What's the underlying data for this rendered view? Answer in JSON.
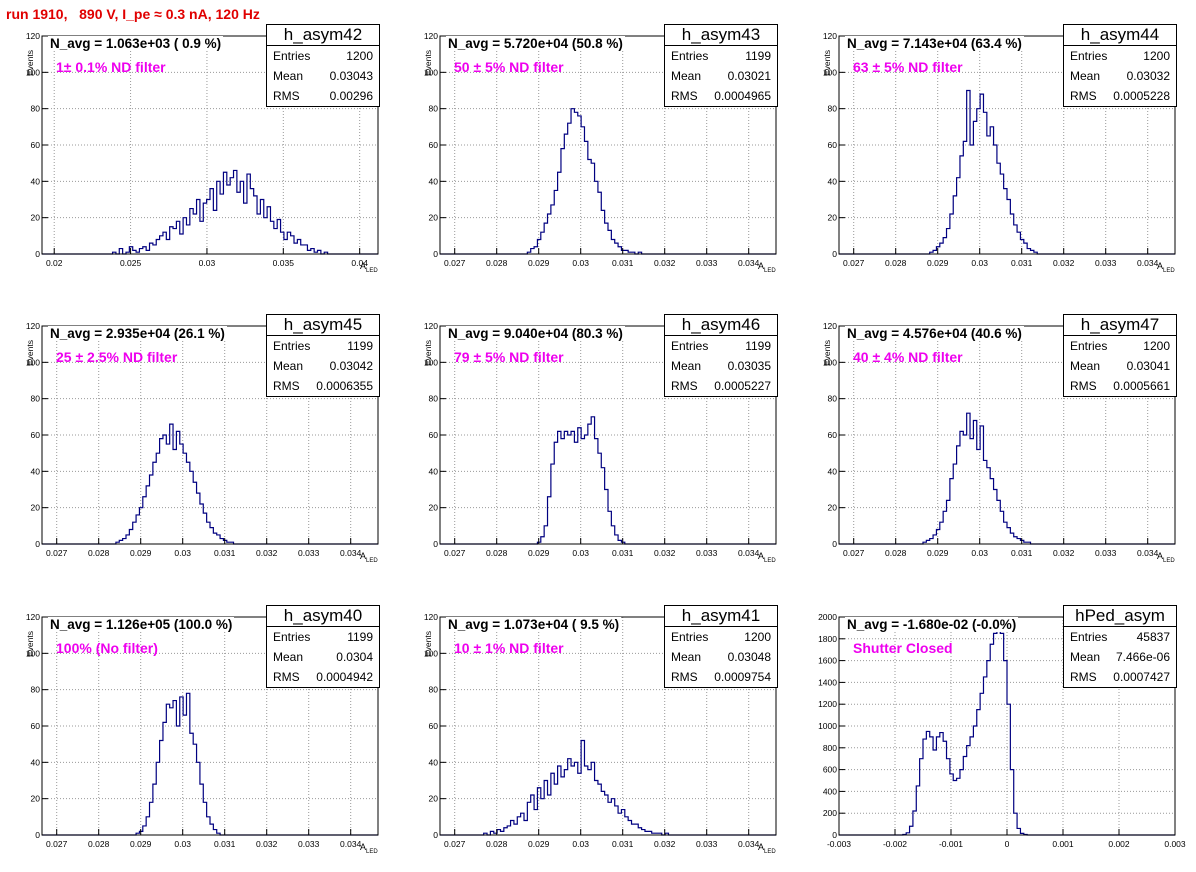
{
  "page_title": "run 1910,   890 V, I_pe ≈ 0.3 nA, 120 Hz",
  "chart_data": [
    {
      "type": "bar",
      "hist_name": "h_asym42",
      "navg_text": "N_avg = 1.063e+03 ( 0.9 %)",
      "filter_text": "1± 0.1% ND filter",
      "stats": {
        "Entries": "1200",
        "Mean": "0.03043",
        "RMS": "0.00296"
      },
      "xlabel": "A",
      "xlabel_sub": "LED",
      "ylabel": "Events",
      "xlim": [
        0.0192,
        0.0412
      ],
      "ylim": [
        0,
        120
      ],
      "x_ticks": [
        0.02,
        0.025,
        0.03,
        0.035,
        0.04
      ],
      "x_tick_labels": [
        "0.02",
        "0.025",
        "0.03",
        "0.035",
        "0.04"
      ],
      "y_ticks": [
        0,
        20,
        40,
        60,
        80,
        100,
        120
      ],
      "y_tick_labels": [
        "0",
        "20",
        "40",
        "60",
        "80",
        "100",
        "120"
      ],
      "bin_start": 0.0192,
      "bin_width": 0.00022,
      "values": [
        0,
        0,
        0,
        0,
        0,
        0,
        0,
        0,
        0,
        0,
        0,
        0,
        0,
        0,
        0,
        0,
        0,
        0,
        0,
        0,
        0,
        1,
        0,
        3,
        0,
        1,
        4,
        2,
        1,
        3,
        4,
        2,
        6,
        5,
        8,
        10,
        12,
        8,
        15,
        14,
        18,
        11,
        20,
        16,
        25,
        22,
        30,
        18,
        28,
        30,
        36,
        24,
        40,
        33,
        45,
        38,
        42,
        46,
        34,
        40,
        28,
        44,
        36,
        32,
        22,
        30,
        20,
        26,
        18,
        14,
        19,
        12,
        8,
        12,
        10,
        6,
        8,
        5,
        5,
        2,
        3,
        1,
        2,
        0,
        1,
        0,
        0,
        0,
        0,
        0,
        0,
        0,
        0,
        0,
        0,
        0,
        0,
        0,
        0,
        0
      ]
    },
    {
      "type": "bar",
      "hist_name": "h_asym43",
      "navg_text": "N_avg = 5.720e+04 (50.8 %)",
      "filter_text": "50 ± 5% ND filter",
      "stats": {
        "Entries": "1199",
        "Mean": "0.03021",
        "RMS": "0.0004965"
      },
      "xlabel": "A",
      "xlabel_sub": "LED",
      "ylabel": "Events",
      "xlim": [
        0.02665,
        0.03465
      ],
      "ylim": [
        0,
        120
      ],
      "x_ticks": [
        0.027,
        0.028,
        0.029,
        0.03,
        0.031,
        0.032,
        0.033,
        0.034
      ],
      "x_tick_labels": [
        "0.027",
        "0.028",
        "0.029",
        "0.03",
        "0.031",
        "0.032",
        "0.033",
        "0.034"
      ],
      "y_ticks": [
        0,
        20,
        40,
        60,
        80,
        100,
        120
      ],
      "y_tick_labels": [
        "0",
        "20",
        "40",
        "60",
        "80",
        "100",
        "120"
      ],
      "bin_start": 0.02665,
      "bin_width": 8e-05,
      "values": [
        0,
        0,
        0,
        0,
        0,
        0,
        0,
        0,
        0,
        0,
        0,
        0,
        0,
        0,
        0,
        0,
        0,
        0,
        0,
        0,
        0,
        0,
        0,
        0,
        0,
        0,
        1,
        3,
        4,
        8,
        12,
        17,
        22,
        27,
        35,
        45,
        58,
        66,
        72,
        80,
        78,
        76,
        70,
        62,
        52,
        50,
        40,
        34,
        24,
        17,
        13,
        8,
        6,
        4,
        2,
        2,
        1,
        1,
        0,
        1,
        0,
        0,
        0,
        0,
        0,
        0,
        0,
        0,
        0,
        0,
        0,
        0,
        0,
        0,
        0,
        0,
        0,
        0,
        0,
        0,
        0,
        0,
        0,
        0,
        0,
        0,
        0,
        0,
        0,
        0,
        0,
        0,
        0,
        0,
        0,
        0,
        0,
        0,
        0,
        0
      ]
    },
    {
      "type": "bar",
      "hist_name": "h_asym44",
      "navg_text": "N_avg = 7.143e+04 (63.4 %)",
      "filter_text": "63 ± 5% ND filter",
      "stats": {
        "Entries": "1200",
        "Mean": "0.03032",
        "RMS": "0.0005228"
      },
      "xlabel": "A",
      "xlabel_sub": "LED",
      "ylabel": "Events",
      "xlim": [
        0.02665,
        0.03465
      ],
      "ylim": [
        0,
        120
      ],
      "x_ticks": [
        0.027,
        0.028,
        0.029,
        0.03,
        0.031,
        0.032,
        0.033,
        0.034
      ],
      "x_tick_labels": [
        "0.027",
        "0.028",
        "0.029",
        "0.03",
        "0.031",
        "0.032",
        "0.033",
        "0.034"
      ],
      "y_ticks": [
        0,
        20,
        40,
        60,
        80,
        100,
        120
      ],
      "y_tick_labels": [
        "0",
        "20",
        "40",
        "60",
        "80",
        "100",
        "120"
      ],
      "bin_start": 0.02665,
      "bin_width": 8e-05,
      "values": [
        0,
        0,
        0,
        0,
        0,
        0,
        0,
        0,
        0,
        0,
        0,
        0,
        0,
        0,
        0,
        0,
        0,
        0,
        0,
        0,
        0,
        0,
        0,
        0,
        0,
        0,
        0,
        1,
        2,
        4,
        6,
        9,
        14,
        22,
        32,
        42,
        54,
        62,
        90,
        60,
        73,
        80,
        88,
        78,
        65,
        70,
        60,
        50,
        44,
        36,
        30,
        22,
        16,
        12,
        8,
        6,
        3,
        2,
        1,
        0,
        0,
        0,
        0,
        0,
        0,
        0,
        0,
        0,
        0,
        0,
        0,
        0,
        0,
        0,
        0,
        0,
        0,
        0,
        0,
        0,
        0,
        0,
        0,
        0,
        0,
        0,
        0,
        0,
        0,
        0,
        0,
        0,
        0,
        0,
        0,
        0,
        0,
        0,
        0,
        0
      ]
    },
    {
      "type": "bar",
      "hist_name": "h_asym45",
      "navg_text": "N_avg = 2.935e+04 (26.1 %)",
      "filter_text": "25 ± 2.5% ND filter",
      "stats": {
        "Entries": "1199",
        "Mean": "0.03042",
        "RMS": "0.0006355"
      },
      "xlabel": "A",
      "xlabel_sub": "LED",
      "ylabel": "Events",
      "xlim": [
        0.02665,
        0.03465
      ],
      "ylim": [
        0,
        120
      ],
      "x_ticks": [
        0.027,
        0.028,
        0.029,
        0.03,
        0.031,
        0.032,
        0.033,
        0.034
      ],
      "x_tick_labels": [
        "0.027",
        "0.028",
        "0.029",
        "0.03",
        "0.031",
        "0.032",
        "0.033",
        "0.034"
      ],
      "y_ticks": [
        0,
        20,
        40,
        60,
        80,
        100,
        120
      ],
      "y_tick_labels": [
        "0",
        "20",
        "40",
        "60",
        "80",
        "100",
        "120"
      ],
      "bin_start": 0.02665,
      "bin_width": 8e-05,
      "values": [
        0,
        0,
        0,
        0,
        0,
        0,
        0,
        0,
        0,
        0,
        0,
        0,
        0,
        0,
        0,
        0,
        0,
        0,
        0,
        0,
        0,
        0,
        1,
        2,
        3,
        5,
        8,
        12,
        16,
        20,
        26,
        32,
        38,
        45,
        50,
        58,
        60,
        55,
        66,
        52,
        62,
        55,
        50,
        45,
        40,
        34,
        28,
        22,
        17,
        12,
        9,
        6,
        5,
        3,
        2,
        1,
        1,
        0,
        0,
        0,
        0,
        0,
        0,
        0,
        0,
        0,
        0,
        0,
        0,
        0,
        0,
        0,
        0,
        0,
        0,
        0,
        0,
        0,
        0,
        0,
        0,
        0,
        0,
        0,
        0,
        0,
        0,
        0,
        0,
        0,
        0,
        0,
        0,
        0,
        0,
        0,
        0,
        0,
        0,
        0
      ]
    },
    {
      "type": "bar",
      "hist_name": "h_asym46",
      "navg_text": "N_avg = 9.040e+04 (80.3 %)",
      "filter_text": "79 ± 5% ND filter",
      "stats": {
        "Entries": "1199",
        "Mean": "0.03035",
        "RMS": "0.0005227"
      },
      "xlabel": "A",
      "xlabel_sub": "LED",
      "ylabel": "Events",
      "xlim": [
        0.02665,
        0.03465
      ],
      "ylim": [
        0,
        120
      ],
      "x_ticks": [
        0.027,
        0.028,
        0.029,
        0.03,
        0.031,
        0.032,
        0.033,
        0.034
      ],
      "x_tick_labels": [
        "0.027",
        "0.028",
        "0.029",
        "0.03",
        "0.031",
        "0.032",
        "0.033",
        "0.034"
      ],
      "y_ticks": [
        0,
        20,
        40,
        60,
        80,
        100,
        120
      ],
      "y_tick_labels": [
        "0",
        "20",
        "40",
        "60",
        "80",
        "100",
        "120"
      ],
      "bin_start": 0.02665,
      "bin_width": 8e-05,
      "values": [
        0,
        0,
        0,
        0,
        0,
        0,
        0,
        0,
        0,
        0,
        0,
        0,
        0,
        0,
        0,
        0,
        0,
        0,
        0,
        0,
        0,
        0,
        0,
        0,
        0,
        0,
        0,
        0,
        0,
        1,
        4,
        10,
        26,
        44,
        56,
        62,
        58,
        62,
        60,
        62,
        56,
        64,
        58,
        60,
        66,
        70,
        58,
        50,
        42,
        30,
        18,
        10,
        5,
        2,
        1,
        0,
        0,
        0,
        0,
        0,
        0,
        0,
        0,
        0,
        0,
        0,
        0,
        0,
        0,
        0,
        0,
        0,
        0,
        0,
        0,
        0,
        0,
        0,
        0,
        0,
        0,
        0,
        0,
        0,
        0,
        0,
        0,
        0,
        0,
        0,
        0,
        0,
        0,
        0,
        0,
        0,
        0,
        0,
        0,
        0
      ]
    },
    {
      "type": "bar",
      "hist_name": "h_asym47",
      "navg_text": "N_avg = 4.576e+04 (40.6 %)",
      "filter_text": "40 ± 4% ND filter",
      "stats": {
        "Entries": "1200",
        "Mean": "0.03041",
        "RMS": "0.0005661"
      },
      "xlabel": "A",
      "xlabel_sub": "LED",
      "ylabel": "Events",
      "xlim": [
        0.02665,
        0.03465
      ],
      "ylim": [
        0,
        120
      ],
      "x_ticks": [
        0.027,
        0.028,
        0.029,
        0.03,
        0.031,
        0.032,
        0.033,
        0.034
      ],
      "x_tick_labels": [
        "0.027",
        "0.028",
        "0.029",
        "0.03",
        "0.031",
        "0.032",
        "0.033",
        "0.034"
      ],
      "y_ticks": [
        0,
        20,
        40,
        60,
        80,
        100,
        120
      ],
      "y_tick_labels": [
        "0",
        "20",
        "40",
        "60",
        "80",
        "100",
        "120"
      ],
      "bin_start": 0.02665,
      "bin_width": 8e-05,
      "values": [
        0,
        0,
        0,
        0,
        0,
        0,
        0,
        0,
        0,
        0,
        0,
        0,
        0,
        0,
        0,
        0,
        0,
        0,
        0,
        0,
        0,
        0,
        0,
        0,
        0,
        1,
        2,
        3,
        5,
        8,
        12,
        18,
        24,
        36,
        44,
        54,
        62,
        60,
        72,
        58,
        68,
        52,
        65,
        46,
        42,
        36,
        30,
        24,
        18,
        12,
        9,
        6,
        4,
        3,
        2,
        1,
        1,
        0,
        0,
        0,
        0,
        0,
        0,
        0,
        0,
        0,
        0,
        0,
        0,
        0,
        0,
        0,
        0,
        0,
        0,
        0,
        0,
        0,
        0,
        0,
        0,
        0,
        0,
        0,
        0,
        0,
        0,
        0,
        0,
        0,
        0,
        0,
        0,
        0,
        0,
        0,
        0,
        0,
        0,
        0
      ]
    },
    {
      "type": "bar",
      "hist_name": "h_asym40",
      "navg_text": "N_avg = 1.126e+05 (100.0 %)",
      "filter_text": "100% (No filter)",
      "stats": {
        "Entries": "1199",
        "Mean": "0.0304",
        "RMS": "0.0004942"
      },
      "xlabel": "A",
      "xlabel_sub": "LED",
      "ylabel": "Events",
      "xlim": [
        0.02665,
        0.03465
      ],
      "ylim": [
        0,
        120
      ],
      "x_ticks": [
        0.027,
        0.028,
        0.029,
        0.03,
        0.031,
        0.032,
        0.033,
        0.034
      ],
      "x_tick_labels": [
        "0.027",
        "0.028",
        "0.029",
        "0.03",
        "0.031",
        "0.032",
        "0.033",
        "0.034"
      ],
      "y_ticks": [
        0,
        20,
        40,
        60,
        80,
        100,
        120
      ],
      "y_tick_labels": [
        "0",
        "20",
        "40",
        "60",
        "80",
        "100",
        "120"
      ],
      "bin_start": 0.02665,
      "bin_width": 8e-05,
      "values": [
        0,
        0,
        0,
        0,
        0,
        0,
        0,
        0,
        0,
        0,
        0,
        0,
        0,
        0,
        0,
        0,
        0,
        0,
        0,
        0,
        0,
        0,
        0,
        0,
        0,
        0,
        0,
        0,
        1,
        2,
        5,
        10,
        18,
        28,
        40,
        52,
        62,
        72,
        70,
        74,
        60,
        76,
        66,
        78,
        56,
        50,
        40,
        28,
        18,
        10,
        6,
        3,
        1,
        0,
        0,
        0,
        0,
        0,
        0,
        0,
        0,
        0,
        0,
        0,
        0,
        0,
        0,
        0,
        0,
        0,
        0,
        0,
        0,
        0,
        0,
        0,
        0,
        0,
        0,
        0,
        0,
        0,
        0,
        0,
        0,
        0,
        0,
        0,
        0,
        0,
        0,
        0,
        0,
        0,
        0,
        0,
        0,
        0,
        0,
        0
      ]
    },
    {
      "type": "bar",
      "hist_name": "h_asym41",
      "navg_text": "N_avg = 1.073e+04 ( 9.5 %)",
      "filter_text": "10 ± 1% ND filter",
      "stats": {
        "Entries": "1200",
        "Mean": "0.03048",
        "RMS": "0.0009754"
      },
      "xlabel": "A",
      "xlabel_sub": "LED",
      "ylabel": "Events",
      "xlim": [
        0.02665,
        0.03465
      ],
      "ylim": [
        0,
        120
      ],
      "x_ticks": [
        0.027,
        0.028,
        0.029,
        0.03,
        0.031,
        0.032,
        0.033,
        0.034
      ],
      "x_tick_labels": [
        "0.027",
        "0.028",
        "0.029",
        "0.03",
        "0.031",
        "0.032",
        "0.033",
        "0.034"
      ],
      "y_ticks": [
        0,
        20,
        40,
        60,
        80,
        100,
        120
      ],
      "y_tick_labels": [
        "0",
        "20",
        "40",
        "60",
        "80",
        "100",
        "120"
      ],
      "bin_start": 0.02665,
      "bin_width": 8e-05,
      "values": [
        0,
        0,
        0,
        0,
        0,
        0,
        0,
        0,
        0,
        0,
        0,
        0,
        0,
        1,
        0,
        2,
        1,
        3,
        2,
        4,
        5,
        8,
        6,
        10,
        12,
        8,
        18,
        22,
        14,
        26,
        20,
        30,
        22,
        34,
        28,
        38,
        32,
        36,
        42,
        38,
        40,
        34,
        52,
        38,
        36,
        40,
        30,
        28,
        24,
        22,
        18,
        20,
        16,
        12,
        14,
        10,
        8,
        6,
        6,
        4,
        3,
        2,
        2,
        1,
        1,
        1,
        0,
        1,
        0,
        0,
        0,
        0,
        0,
        0,
        0,
        0,
        0,
        0,
        0,
        0,
        0,
        0,
        0,
        0,
        0,
        0,
        0,
        0,
        0,
        0,
        0,
        0,
        0,
        0,
        0,
        0,
        0,
        0,
        0,
        0
      ]
    },
    {
      "type": "bar",
      "hist_name": "hPed_asym",
      "navg_text": "N_avg = -1.680e-02 (-0.0%)",
      "filter_text": "Shutter Closed",
      "stats": {
        "Entries": "45837",
        "Mean": "7.466e-06",
        "RMS": "0.0007427"
      },
      "xlabel": "",
      "xlabel_sub": "",
      "ylabel": "",
      "xlim": [
        -0.003,
        0.003
      ],
      "ylim": [
        0,
        2000
      ],
      "x_ticks": [
        -0.003,
        -0.002,
        -0.001,
        0,
        0.001,
        0.002,
        0.003
      ],
      "x_tick_labels": [
        "-0.003",
        "-0.002",
        "-0.001",
        "0",
        "0.001",
        "0.002",
        "0.003"
      ],
      "y_ticks": [
        0,
        200,
        400,
        600,
        800,
        1000,
        1200,
        1400,
        1600,
        1800,
        2000
      ],
      "y_tick_labels": [
        "0",
        "200",
        "400",
        "600",
        "800",
        "1000",
        "1200",
        "1400",
        "1600",
        "1800",
        "2000"
      ],
      "bin_start": -0.003,
      "bin_width": 6e-05,
      "values": [
        0,
        0,
        0,
        0,
        0,
        0,
        0,
        0,
        0,
        0,
        0,
        0,
        0,
        0,
        0,
        0,
        0,
        0,
        0,
        5,
        20,
        80,
        220,
        450,
        700,
        880,
        950,
        900,
        780,
        900,
        940,
        860,
        700,
        560,
        500,
        520,
        600,
        720,
        820,
        900,
        1000,
        1150,
        1300,
        1450,
        1600,
        1750,
        1850,
        1900,
        1850,
        1600,
        1200,
        600,
        200,
        60,
        15,
        5,
        0,
        0,
        0,
        0,
        0,
        0,
        0,
        0,
        0,
        0,
        0,
        0,
        0,
        0,
        0,
        0,
        0,
        0,
        0,
        0,
        0,
        0,
        0,
        0,
        0,
        0,
        0,
        0,
        0,
        0,
        0,
        0,
        0,
        0,
        0,
        0,
        0,
        0,
        0,
        0,
        0,
        0,
        0,
        0
      ]
    }
  ]
}
